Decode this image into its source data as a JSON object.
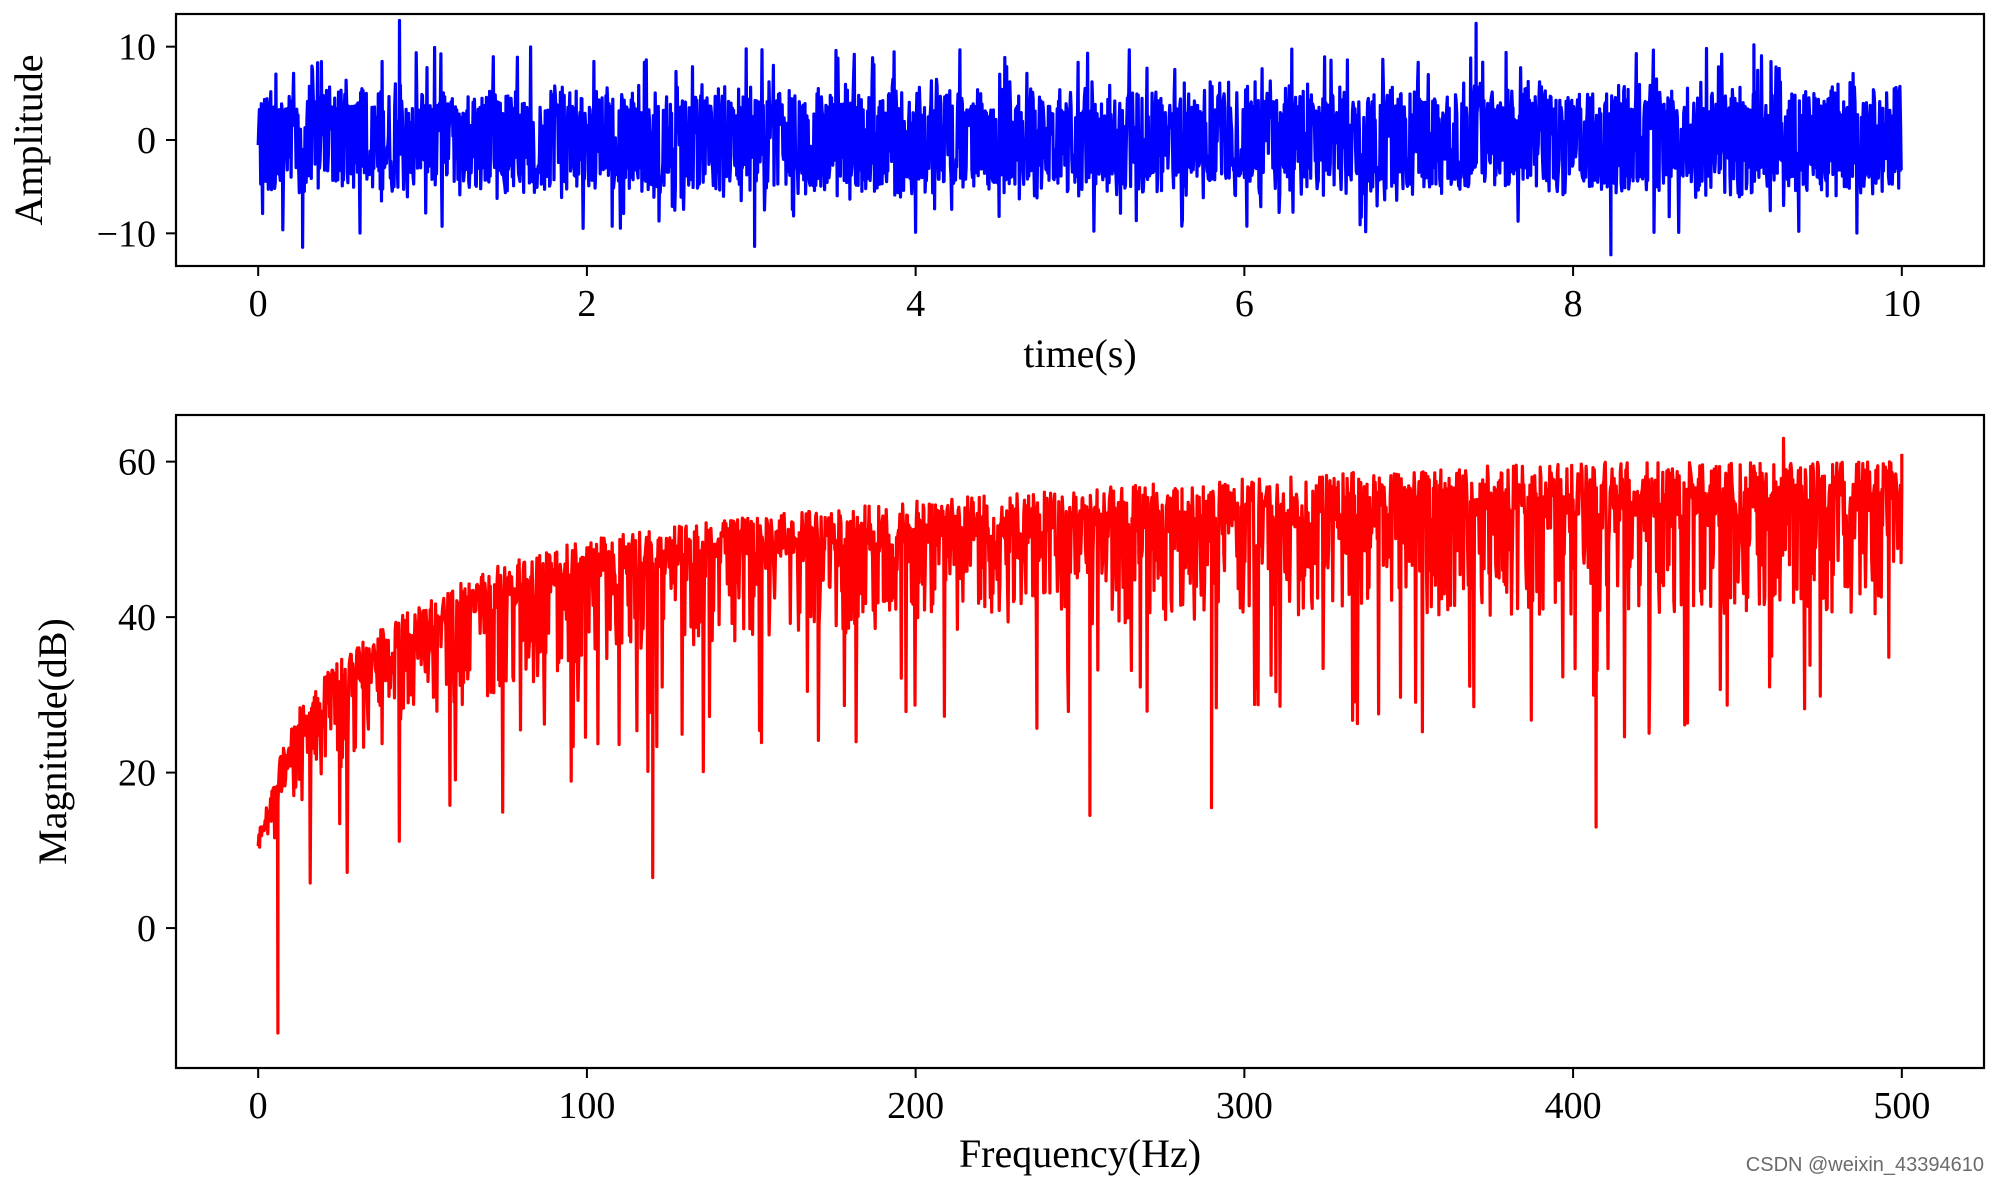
{
  "chart_data": [
    {
      "type": "line",
      "xlabel": "time(s)",
      "ylabel": "Amplitude",
      "xlim": [
        -0.5,
        10.5
      ],
      "ylim": [
        -13.5,
        13.5
      ],
      "xticks": [
        "0",
        "2",
        "4",
        "6",
        "8",
        "10"
      ],
      "xtick_values": [
        0,
        2,
        4,
        6,
        8,
        10
      ],
      "yticks": [
        "−10",
        "0",
        "10"
      ],
      "ytick_values": [
        -10,
        0,
        10
      ],
      "grid": false,
      "series": [
        {
          "color": "#0000ff",
          "x_range": [
            0,
            10
          ],
          "typical_envelope": [
            -6,
            6
          ],
          "notable_points": [
            {
              "x": 0.27,
              "y": -11.5
            },
            {
              "x": 0.86,
              "y": 12.8
            },
            {
              "x": 3.02,
              "y": -11.4
            },
            {
              "x": 7.41,
              "y": 12.5
            },
            {
              "x": 8.23,
              "y": -12.3
            },
            {
              "x": 9.1,
              "y": 10.2
            }
          ]
        }
      ]
    },
    {
      "type": "line",
      "xlabel": "Frequency(Hz)",
      "ylabel": "Magnitude(dB)",
      "xlim": [
        -25,
        525
      ],
      "ylim": [
        -18,
        66
      ],
      "xticks": [
        "0",
        "100",
        "200",
        "300",
        "400",
        "500"
      ],
      "xtick_values": [
        0,
        100,
        200,
        300,
        400,
        500
      ],
      "yticks": [
        "0",
        "20",
        "40",
        "60"
      ],
      "ytick_values": [
        0,
        20,
        40,
        60
      ],
      "grid": false,
      "series": [
        {
          "color": "#ff0000",
          "x_range": [
            0,
            500
          ],
          "upper_envelope": [
            [
              0,
              12
            ],
            [
              10,
              27
            ],
            [
              25,
              35
            ],
            [
              50,
              42
            ],
            [
              75,
              47
            ],
            [
              100,
              50
            ],
            [
              150,
              53
            ],
            [
              200,
              55
            ],
            [
              300,
              58
            ],
            [
              400,
              60
            ],
            [
              500,
              60
            ]
          ],
          "lower_envelope": [
            [
              0,
              8
            ],
            [
              10,
              15
            ],
            [
              25,
              20
            ],
            [
              50,
              27
            ],
            [
              75,
              30
            ],
            [
              100,
              34
            ],
            [
              150,
              37
            ],
            [
              200,
              38
            ],
            [
              300,
              40
            ],
            [
              400,
              40
            ],
            [
              500,
              40
            ]
          ],
          "notable_points": [
            {
              "x": 6,
              "y": -13.5
            },
            {
              "x": 120,
              "y": 6.5
            },
            {
              "x": 253,
              "y": 14.5
            },
            {
              "x": 290,
              "y": 15.5
            },
            {
              "x": 407,
              "y": 13
            },
            {
              "x": 464,
              "y": 63
            },
            {
              "x": 500,
              "y": 61
            }
          ]
        }
      ]
    }
  ],
  "watermark": "CSDN @weixin_43394610"
}
